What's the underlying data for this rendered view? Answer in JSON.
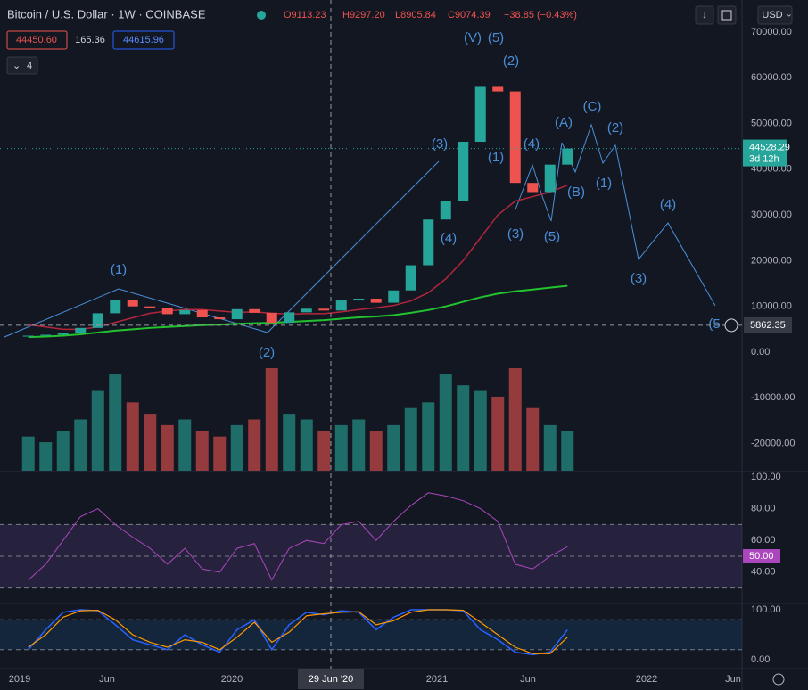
{
  "header": {
    "symbol": "Bitcoin / U.S. Dollar · 1W · COINBASE",
    "ohlc": [
      "O9113.23",
      "H9297.20",
      "L8905.84",
      "C9074.39",
      "−38.85 (−0.43%)"
    ],
    "bid": "44450.60",
    "spread": "165.36",
    "ask": "44615.96",
    "indicators_count": "4",
    "currency": "USD"
  },
  "price": {
    "months": [
      "2019-01",
      "2019-02",
      "2019-03",
      "2019-04",
      "2019-05",
      "2019-06",
      "2019-07",
      "2019-08",
      "2019-09",
      "2019-10",
      "2019-11",
      "2019-12",
      "2020-01",
      "2020-02",
      "2020-03",
      "2020-04",
      "2020-05",
      "2020-06",
      "2020-07",
      "2020-08",
      "2020-09",
      "2020-10",
      "2020-11",
      "2020-12",
      "2021-01",
      "2021-02",
      "2021-03",
      "2021-04",
      "2021-05",
      "2021-06",
      "2021-07",
      "2021-08"
    ],
    "close": [
      3600,
      3800,
      4100,
      5300,
      8500,
      11500,
      10000,
      9600,
      8300,
      9200,
      7600,
      7200,
      9400,
      8600,
      6400,
      8700,
      9500,
      9100,
      11300,
      11700,
      10800,
      13500,
      19000,
      29000,
      33000,
      46000,
      58000,
      57000,
      37000,
      35000,
      41000,
      44528
    ],
    "ma_green": [
      3300,
      3400,
      3600,
      3900,
      4300,
      4700,
      5000,
      5300,
      5500,
      5700,
      5900,
      6000,
      6200,
      6300,
      6400,
      6600,
      6800,
      7000,
      7300,
      7600,
      7800,
      8100,
      8600,
      9200,
      10000,
      11000,
      12000,
      12800,
      13300,
      13700,
      14100,
      14500
    ],
    "ma_red": [
      6000,
      5500,
      5000,
      5000,
      5500,
      6500,
      7500,
      8500,
      9000,
      9300,
      9300,
      9000,
      8700,
      8800,
      8500,
      8300,
      8400,
      8400,
      8800,
      9300,
      9700,
      10200,
      11200,
      13000,
      16000,
      20000,
      25000,
      30000,
      33000,
      34000,
      35000,
      36500
    ],
    "yticks": [
      {
        "value": 70000,
        "label": "70000.00"
      },
      {
        "value": 60000,
        "label": "60000.00"
      },
      {
        "value": 50000,
        "label": "50000.00"
      },
      {
        "value": 40000,
        "label": "40000.00"
      },
      {
        "value": 30000,
        "label": "30000.00"
      },
      {
        "value": 20000,
        "label": "20000.00"
      },
      {
        "value": 10000,
        "label": "10000.00"
      },
      {
        "value": 0,
        "label": "0.00"
      },
      {
        "value": -10000,
        "label": "-10000.00"
      },
      {
        "value": -20000,
        "label": "-20000.00"
      }
    ],
    "last": {
      "value": 44528.29,
      "label": "44528.29",
      "countdown": "3d 12h"
    },
    "crosshair": {
      "value": 5862.35,
      "label": "5862.35",
      "date": "29 Jun '20"
    },
    "waves": [
      "(1)",
      "(2)",
      "(3)",
      "(4)",
      "(V)",
      "(5)",
      "(2)",
      "(1)",
      "(4)",
      "(3)",
      "(5)",
      "(A)",
      "(B)",
      "(C)",
      "(2)",
      "(1)",
      "(3)",
      "(4)",
      "(5"
    ]
  },
  "volume": [
    30,
    25,
    35,
    45,
    70,
    85,
    60,
    50,
    40,
    45,
    35,
    30,
    40,
    45,
    90,
    50,
    45,
    35,
    40,
    45,
    35,
    40,
    55,
    60,
    85,
    75,
    70,
    65,
    90,
    55,
    40,
    35
  ],
  "rsi": {
    "values": [
      35,
      45,
      60,
      75,
      80,
      70,
      62,
      55,
      45,
      55,
      42,
      40,
      55,
      58,
      35,
      55,
      60,
      58,
      70,
      72,
      60,
      72,
      82,
      90,
      88,
      85,
      80,
      72,
      45,
      42,
      50,
      56
    ],
    "levels": [
      30,
      50,
      70
    ],
    "yticks": [
      {
        "value": 100,
        "label": "100.00"
      },
      {
        "value": 80,
        "label": "80.00"
      },
      {
        "value": 60,
        "label": "60.00"
      },
      {
        "value": 40,
        "label": "40.00"
      }
    ],
    "tag": {
      "value": 50,
      "label": "50.00"
    }
  },
  "stoch": {
    "k": [
      20,
      60,
      95,
      100,
      98,
      70,
      40,
      30,
      20,
      50,
      30,
      15,
      60,
      80,
      20,
      70,
      95,
      90,
      98,
      95,
      60,
      85,
      100,
      100,
      100,
      98,
      60,
      40,
      15,
      10,
      15,
      60
    ],
    "d": [
      25,
      50,
      85,
      98,
      99,
      80,
      50,
      35,
      25,
      40,
      35,
      20,
      45,
      75,
      35,
      55,
      88,
      92,
      95,
      96,
      70,
      78,
      95,
      100,
      100,
      99,
      75,
      50,
      25,
      12,
      12,
      45
    ],
    "levels": [
      20,
      80
    ],
    "yticks": [
      {
        "value": 100,
        "label": "100.00"
      },
      {
        "value": 0,
        "label": "0.00"
      }
    ]
  },
  "time_axis": [
    "2019",
    "Jun",
    "2020",
    "2021",
    "Jun",
    "2022",
    "Jun"
  ]
}
